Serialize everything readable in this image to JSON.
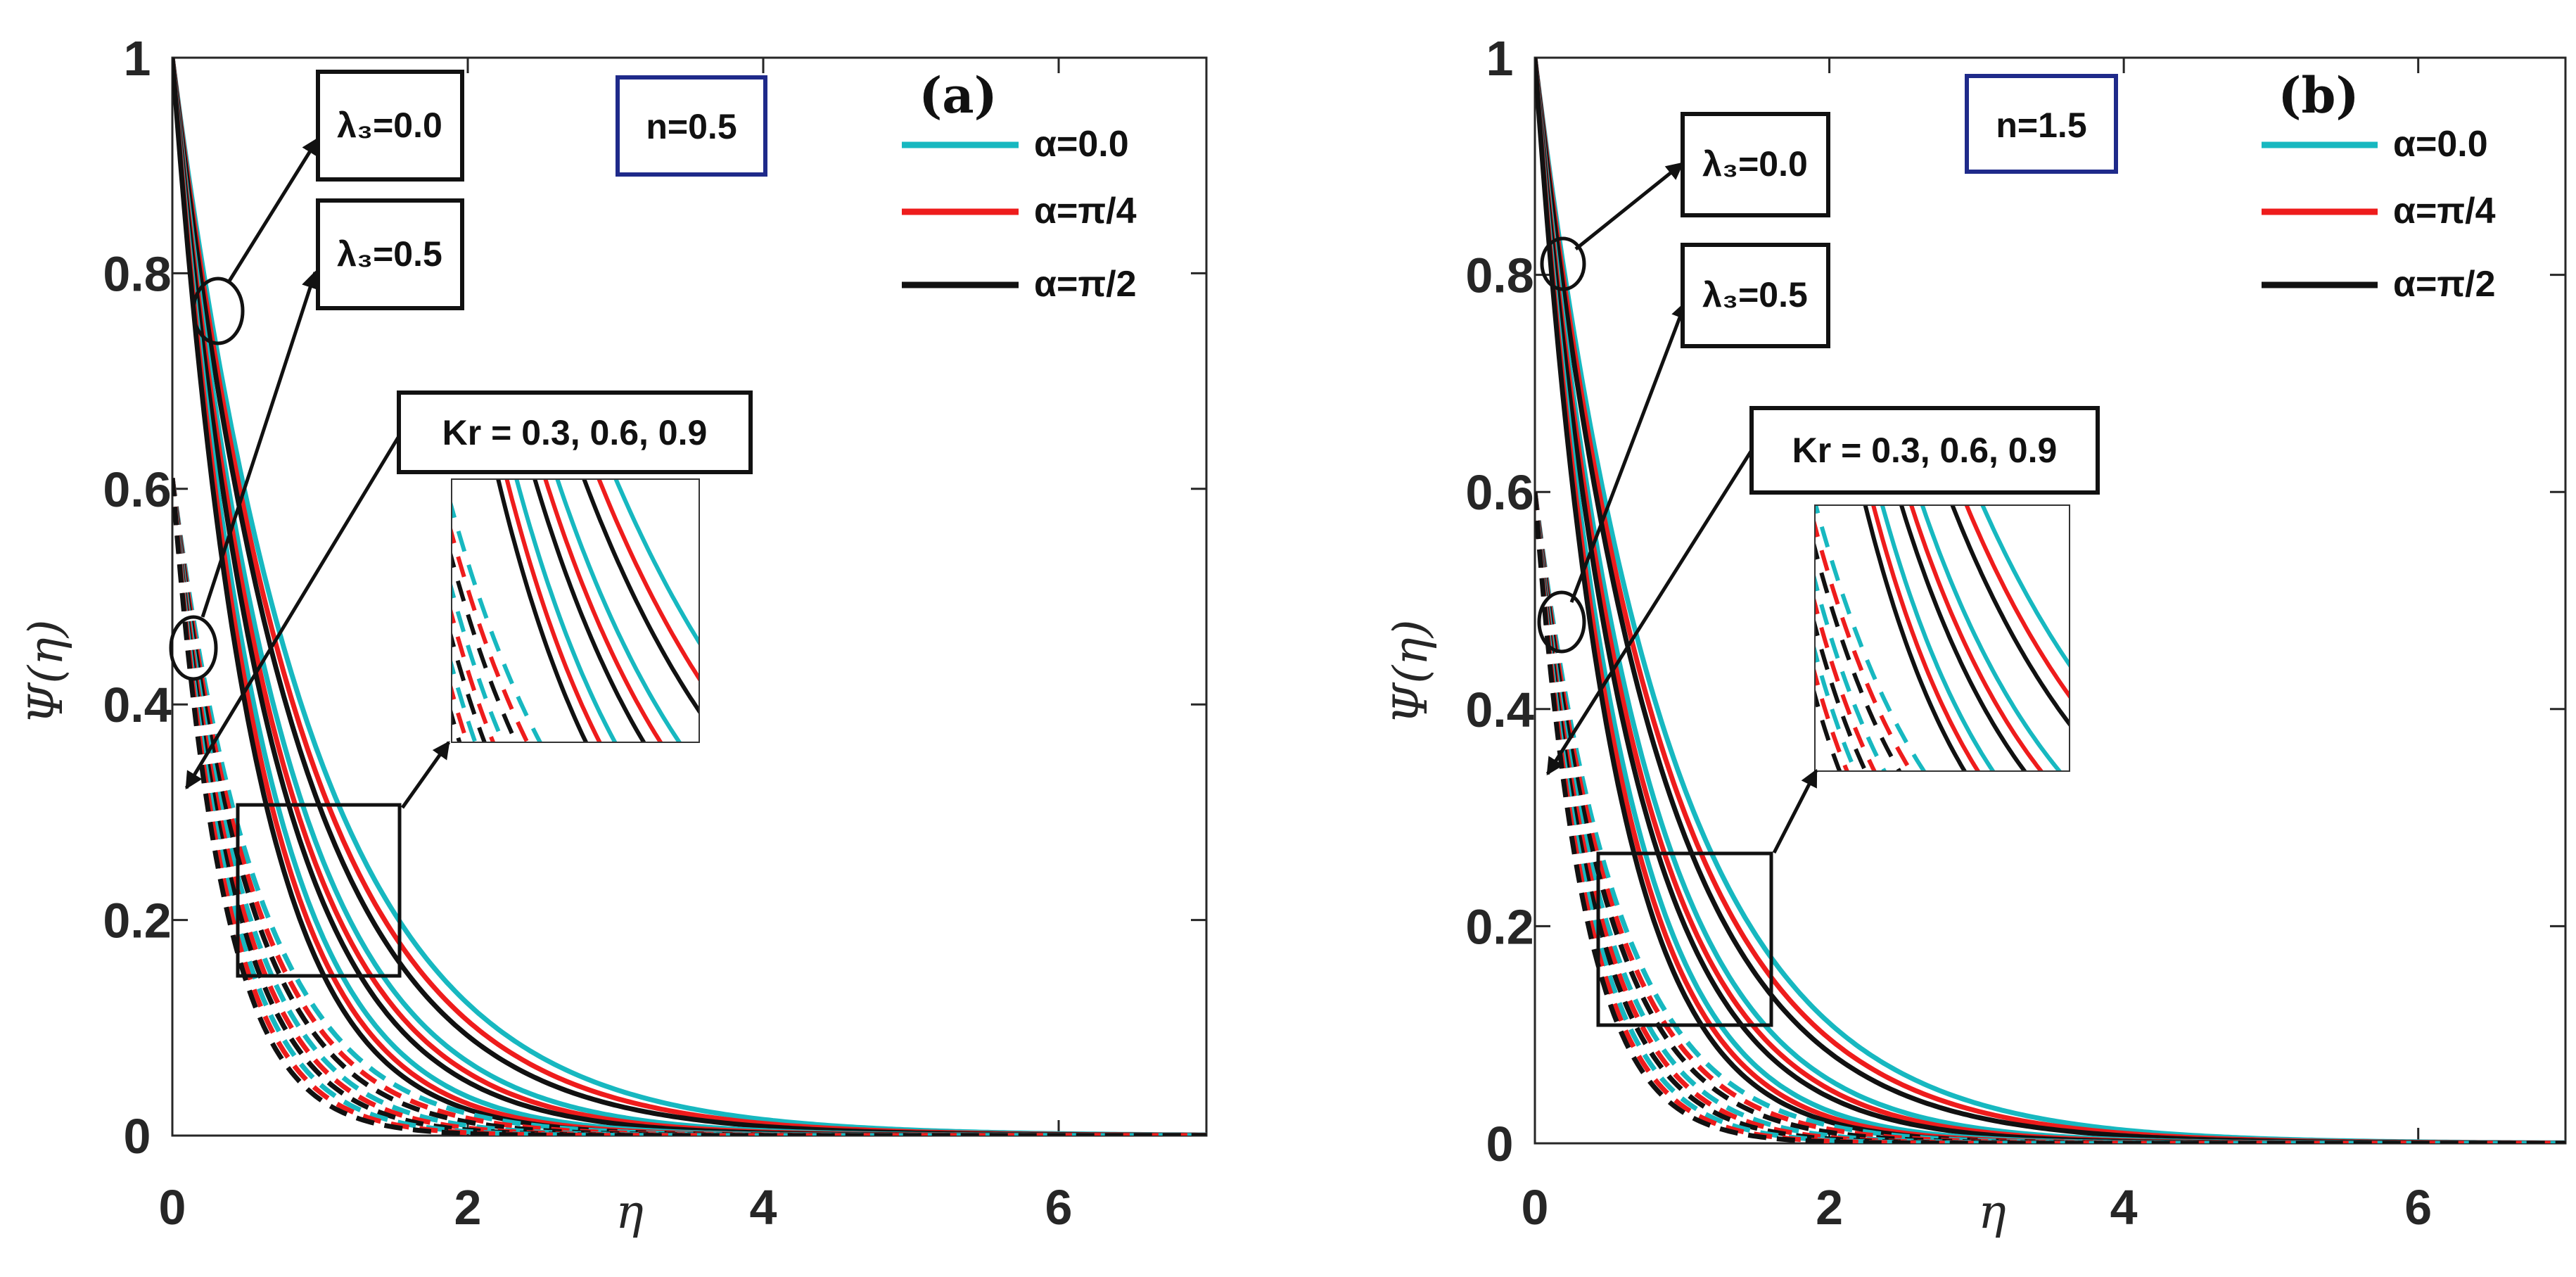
{
  "chart_data": [
    {
      "type": "line",
      "panel_label": "(a)",
      "n_label": "n=0.5",
      "n": 0.5,
      "xlabel": "η",
      "ylabel": "Ψ(η)",
      "xlim": [
        0,
        7
      ],
      "ylim": [
        0,
        1
      ],
      "xticks": [
        "0",
        "2",
        "4",
        "6"
      ],
      "yticks": [
        "0",
        "0.2",
        "0.4",
        "0.6",
        "0.8",
        "1"
      ],
      "legend": [
        {
          "label": "α=0.0",
          "color": "#17b8c0"
        },
        {
          "label": "α=π/4",
          "color": "#ee1c1c"
        },
        {
          "label": "α=π/2",
          "color": "#111111"
        }
      ],
      "annotations": {
        "lambda_a": "λ₃=0.0",
        "lambda_b": "λ₃=0.5",
        "kr": "Kr = 0.3, 0.6, 0.9"
      },
      "series_rule": "Ψ(η) = Ψ0·exp(-k·η); solid lines λ3=0.0 (Ψ0=1.0), dashed lines λ3=0.5 (Ψ0≈0.61); three Kr values × three α values",
      "series": [
        {
          "name": "λ3=0.0, Kr=0.3, α=0.0",
          "style": "solid",
          "color": "#17b8c0",
          "y0": 1.0,
          "decay": 1.05
        },
        {
          "name": "λ3=0.0, Kr=0.3, α=π/4",
          "style": "solid",
          "color": "#ee1c1c",
          "y0": 1.0,
          "decay": 1.12
        },
        {
          "name": "λ3=0.0, Kr=0.3, α=π/2",
          "style": "solid",
          "color": "#111111",
          "y0": 1.0,
          "decay": 1.19
        },
        {
          "name": "λ3=0.0, Kr=0.6, α=0.0",
          "style": "solid",
          "color": "#17b8c0",
          "y0": 1.0,
          "decay": 1.34
        },
        {
          "name": "λ3=0.0, Kr=0.6, α=π/4",
          "style": "solid",
          "color": "#ee1c1c",
          "y0": 1.0,
          "decay": 1.42
        },
        {
          "name": "λ3=0.0, Kr=0.6, α=π/2",
          "style": "solid",
          "color": "#111111",
          "y0": 1.0,
          "decay": 1.5
        },
        {
          "name": "λ3=0.0, Kr=0.9, α=0.0",
          "style": "solid",
          "color": "#17b8c0",
          "y0": 1.0,
          "decay": 1.66
        },
        {
          "name": "λ3=0.0, Kr=0.9, α=π/4",
          "style": "solid",
          "color": "#ee1c1c",
          "y0": 1.0,
          "decay": 1.76
        },
        {
          "name": "λ3=0.0, Kr=0.9, α=π/2",
          "style": "solid",
          "color": "#111111",
          "y0": 1.0,
          "decay": 1.86
        },
        {
          "name": "λ3=0.5, Kr=0.3, α=0.0",
          "style": "dashed",
          "color": "#17b8c0",
          "y0": 0.61,
          "decay": 1.7
        },
        {
          "name": "λ3=0.5, Kr=0.3, α=π/4",
          "style": "dashed",
          "color": "#ee1c1c",
          "y0": 0.61,
          "decay": 1.82
        },
        {
          "name": "λ3=0.5, Kr=0.3, α=π/2",
          "style": "dashed",
          "color": "#111111",
          "y0": 0.61,
          "decay": 1.94
        },
        {
          "name": "λ3=0.5, Kr=0.6, α=0.0",
          "style": "dashed",
          "color": "#17b8c0",
          "y0": 0.61,
          "decay": 2.1
        },
        {
          "name": "λ3=0.5, Kr=0.6, α=π/4",
          "style": "dashed",
          "color": "#ee1c1c",
          "y0": 0.61,
          "decay": 2.24
        },
        {
          "name": "λ3=0.5, Kr=0.6, α=π/2",
          "style": "dashed",
          "color": "#111111",
          "y0": 0.61,
          "decay": 2.38
        },
        {
          "name": "λ3=0.5, Kr=0.9, α=0.0",
          "style": "dashed",
          "color": "#17b8c0",
          "y0": 0.61,
          "decay": 2.55
        },
        {
          "name": "λ3=0.5, Kr=0.9, α=π/4",
          "style": "dashed",
          "color": "#ee1c1c",
          "y0": 0.61,
          "decay": 2.72
        },
        {
          "name": "λ3=0.5, Kr=0.9, α=π/2",
          "style": "dashed",
          "color": "#111111",
          "y0": 0.61,
          "decay": 2.9
        }
      ],
      "zoom_region": {
        "x": [
          0.45,
          1.5
        ],
        "y": [
          0.15,
          0.3
        ]
      }
    },
    {
      "type": "line",
      "panel_label": "(b)",
      "n_label": "n=1.5",
      "n": 1.5,
      "xlabel": "η",
      "ylabel": "Ψ(η)",
      "xlim": [
        0,
        7
      ],
      "ylim": [
        0,
        1
      ],
      "xticks": [
        "0",
        "2",
        "4",
        "6"
      ],
      "yticks": [
        "0",
        "0.2",
        "0.4",
        "0.6",
        "0.8",
        "1"
      ],
      "legend": [
        {
          "label": "α=0.0",
          "color": "#17b8c0"
        },
        {
          "label": "α=π/4",
          "color": "#ee1c1c"
        },
        {
          "label": "α=π/2",
          "color": "#111111"
        }
      ],
      "annotations": {
        "lambda_a": "λ₃=0.0",
        "lambda_b": "λ₃=0.5",
        "kr": "Kr = 0.3, 0.6, 0.9"
      },
      "series_rule": "Ψ(η) = Ψ0·exp(-k·η); solid lines λ3=0.0 (Ψ0=1.0), dashed lines λ3=0.5 (Ψ0≈0.60); three Kr values × three α values",
      "series": [
        {
          "name": "λ3=0.0, Kr=0.3, α=0.0",
          "style": "solid",
          "color": "#17b8c0",
          "y0": 1.0,
          "decay": 1.1
        },
        {
          "name": "λ3=0.0, Kr=0.3, α=π/4",
          "style": "solid",
          "color": "#ee1c1c",
          "y0": 1.0,
          "decay": 1.17
        },
        {
          "name": "λ3=0.0, Kr=0.3, α=π/2",
          "style": "solid",
          "color": "#111111",
          "y0": 1.0,
          "decay": 1.24
        },
        {
          "name": "λ3=0.0, Kr=0.6, α=0.0",
          "style": "solid",
          "color": "#17b8c0",
          "y0": 1.0,
          "decay": 1.42
        },
        {
          "name": "λ3=0.0, Kr=0.6, α=π/4",
          "style": "solid",
          "color": "#ee1c1c",
          "y0": 1.0,
          "decay": 1.5
        },
        {
          "name": "λ3=0.0, Kr=0.6, α=π/2",
          "style": "solid",
          "color": "#111111",
          "y0": 1.0,
          "decay": 1.58
        },
        {
          "name": "λ3=0.0, Kr=0.9, α=0.0",
          "style": "solid",
          "color": "#17b8c0",
          "y0": 1.0,
          "decay": 1.76
        },
        {
          "name": "λ3=0.0, Kr=0.9, α=π/4",
          "style": "solid",
          "color": "#ee1c1c",
          "y0": 1.0,
          "decay": 1.86
        },
        {
          "name": "λ3=0.0, Kr=0.9, α=π/2",
          "style": "solid",
          "color": "#111111",
          "y0": 1.0,
          "decay": 1.96
        },
        {
          "name": "λ3=0.5, Kr=0.3, α=0.0",
          "style": "dashed",
          "color": "#17b8c0",
          "y0": 0.6,
          "decay": 1.8
        },
        {
          "name": "λ3=0.5, Kr=0.3, α=π/4",
          "style": "dashed",
          "color": "#ee1c1c",
          "y0": 0.6,
          "decay": 1.92
        },
        {
          "name": "λ3=0.5, Kr=0.3, α=π/2",
          "style": "dashed",
          "color": "#111111",
          "y0": 0.6,
          "decay": 2.04
        },
        {
          "name": "λ3=0.5, Kr=0.6, α=0.0",
          "style": "dashed",
          "color": "#17b8c0",
          "y0": 0.6,
          "decay": 2.22
        },
        {
          "name": "λ3=0.5, Kr=0.6, α=π/4",
          "style": "dashed",
          "color": "#ee1c1c",
          "y0": 0.6,
          "decay": 2.36
        },
        {
          "name": "λ3=0.5, Kr=0.6, α=π/2",
          "style": "dashed",
          "color": "#111111",
          "y0": 0.6,
          "decay": 2.5
        },
        {
          "name": "λ3=0.5, Kr=0.9, α=0.0",
          "style": "dashed",
          "color": "#17b8c0",
          "y0": 0.6,
          "decay": 2.68
        },
        {
          "name": "λ3=0.5, Kr=0.9, α=π/4",
          "style": "dashed",
          "color": "#ee1c1c",
          "y0": 0.6,
          "decay": 2.85
        },
        {
          "name": "λ3=0.5, Kr=0.9, α=π/2",
          "style": "dashed",
          "color": "#111111",
          "y0": 0.6,
          "decay": 3.02
        }
      ],
      "zoom_region": {
        "x": [
          0.45,
          1.6
        ],
        "y": [
          0.11,
          0.265
        ]
      }
    }
  ]
}
